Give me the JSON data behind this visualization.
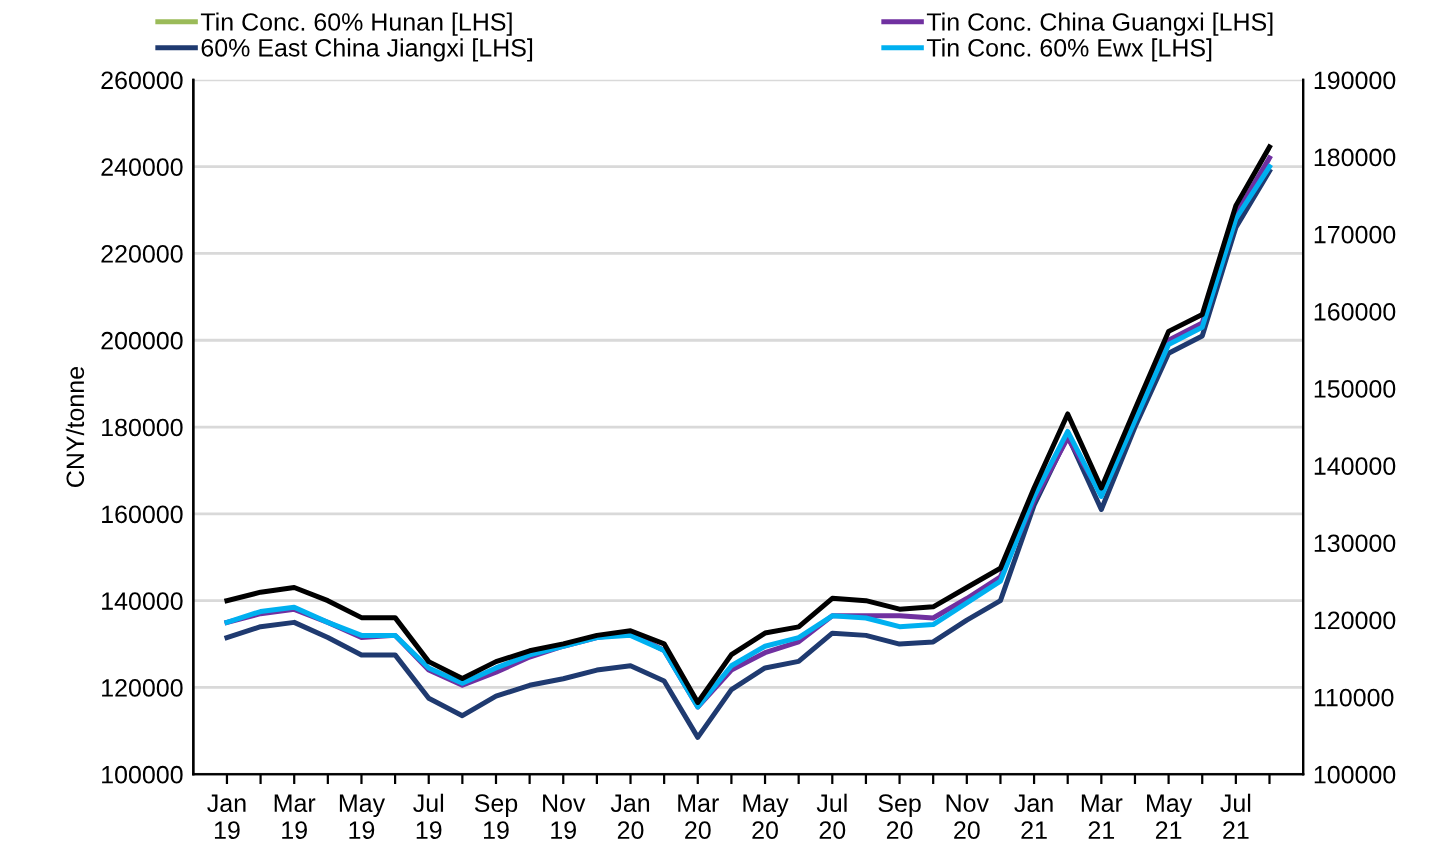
{
  "chart_data": {
    "type": "line",
    "ylabel": "CNY/tonne",
    "categories": [
      "Jan\n19",
      null,
      "Mar\n19",
      null,
      "May\n19",
      null,
      "Jul\n19",
      null,
      "Sep\n19",
      null,
      "Nov\n19",
      null,
      "Jan\n20",
      null,
      "Mar\n20",
      null,
      "May\n20",
      null,
      "Jul\n20",
      null,
      "Sep\n20",
      null,
      "Nov\n20",
      null,
      "Jan\n21",
      null,
      "Mar\n21",
      null,
      "May\n21",
      null,
      "Jul\n21",
      null
    ],
    "ylim": [
      100000,
      260000
    ],
    "yticks": [
      100000,
      120000,
      140000,
      160000,
      180000,
      200000,
      220000,
      240000,
      260000
    ],
    "y2lim": [
      100000,
      190000
    ],
    "y2ticks": [
      100000,
      110000,
      120000,
      130000,
      140000,
      150000,
      160000,
      170000,
      180000,
      190000
    ],
    "grid": "y",
    "legend": "top",
    "marker": "none",
    "line_style": "solid",
    "series": [
      {
        "name": "Tin Conc. 60% Hunan [LHS]",
        "color": "#9bbb59",
        "values": [
          null,
          null,
          null,
          null,
          null,
          null,
          null,
          null,
          null,
          null,
          null,
          null,
          null,
          null,
          null,
          null,
          null,
          null,
          null,
          null,
          null,
          null,
          null,
          null,
          null,
          null,
          null,
          null,
          null,
          null,
          null,
          null
        ]
      },
      {
        "color": "#000000",
        "axis": "y2",
        "values": [
          122500,
          123600,
          124200,
          122500,
          120300,
          120300,
          114600,
          112400,
          114600,
          116000,
          116900,
          118000,
          118600,
          116900,
          109300,
          115500,
          118300,
          119100,
          122800,
          122500,
          121400,
          121700,
          124200,
          126700,
          137100,
          146700,
          137100,
          147300,
          157400,
          159600,
          173700,
          181300
        ]
      },
      {
        "name": "60% East China Jiangxi [LHS]",
        "color": "#1f3a70",
        "values": [
          131500,
          134000,
          135000,
          131500,
          127500,
          127500,
          117500,
          113500,
          118000,
          120500,
          122000,
          124000,
          125000,
          121500,
          108500,
          119500,
          124500,
          126000,
          132500,
          132000,
          130000,
          130500,
          135500,
          140000,
          162000,
          178000,
          161000,
          180000,
          197000,
          201000,
          226000,
          239000
        ]
      },
      {
        "name": "Tin Conc. China Guangxi [LHS]",
        "color": "#7030a0",
        "values": [
          135000,
          137000,
          138000,
          135000,
          131500,
          132000,
          124000,
          120500,
          123500,
          127000,
          129500,
          131500,
          132500,
          128500,
          115500,
          124000,
          128000,
          130500,
          136500,
          136500,
          136500,
          136000,
          140500,
          145500,
          163000,
          177500,
          164500,
          182000,
          200000,
          204000,
          229000,
          242000
        ]
      },
      {
        "name": "Tin Conc. 60% Ewx [LHS]",
        "color": "#00b0f0",
        "values": [
          135000,
          137500,
          138500,
          135000,
          132000,
          132000,
          124500,
          121000,
          124500,
          127500,
          129500,
          131500,
          132000,
          128500,
          115500,
          125000,
          129500,
          131500,
          136500,
          136000,
          134000,
          134500,
          139500,
          144500,
          164000,
          179000,
          164000,
          181500,
          199000,
          203000,
          228000,
          240000
        ]
      }
    ]
  }
}
